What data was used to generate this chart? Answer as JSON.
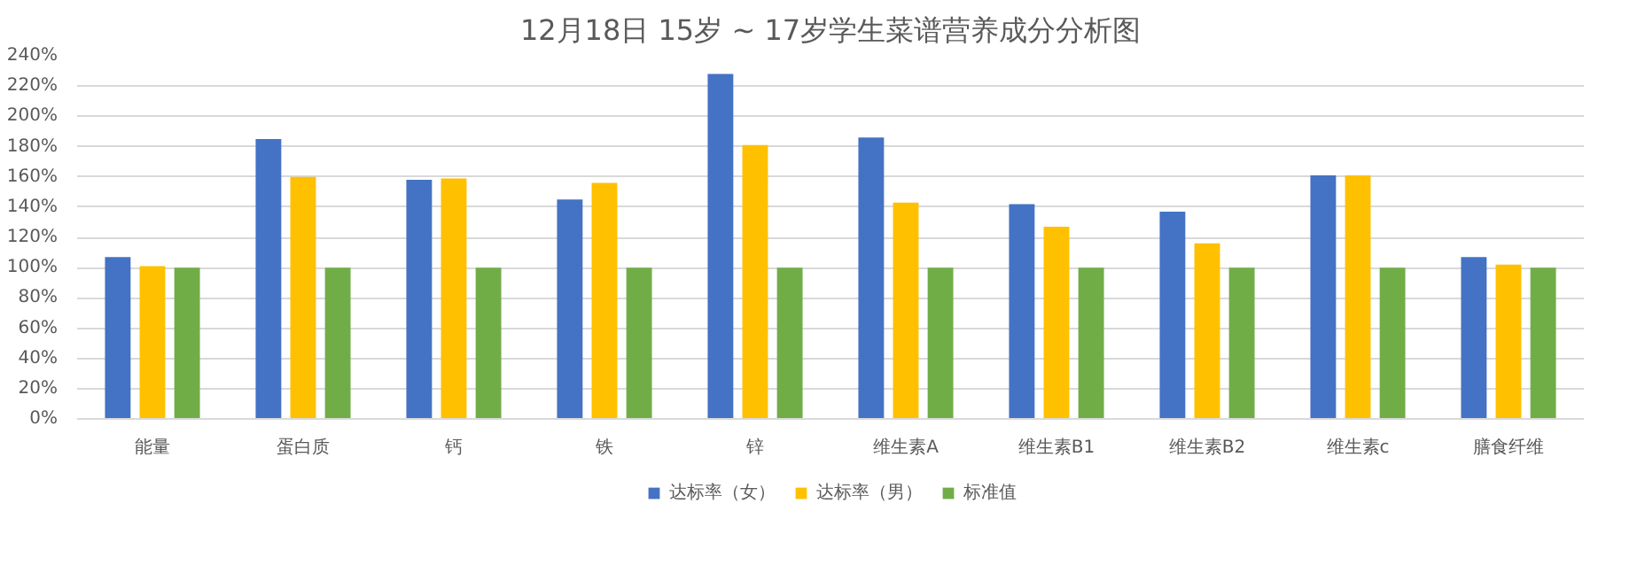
{
  "chart_data": {
    "type": "bar",
    "title": "12月18日 15岁 ~ 17岁学生菜谱营养成分分析图",
    "categories": [
      "能量",
      "蛋白质",
      "钙",
      "铁",
      "锌",
      "维生素A",
      "维生素B1",
      "维生素B2",
      "维生素c",
      "膳食纤维"
    ],
    "series": [
      {
        "name": "达标率（女）",
        "color": "#4472c4",
        "values": [
          107,
          185,
          158,
          145,
          228,
          186,
          142,
          137,
          161,
          107
        ]
      },
      {
        "name": "达标率（男）",
        "color": "#ffc000",
        "values": [
          101,
          160,
          159,
          156,
          181,
          143,
          127,
          116,
          161,
          102
        ]
      },
      {
        "name": "标准值",
        "color": "#70ad47",
        "values": [
          100,
          100,
          100,
          100,
          100,
          100,
          100,
          100,
          100,
          100
        ]
      }
    ],
    "ylim": [
      0,
      240
    ],
    "yticks": [
      {
        "value": 0,
        "label": "0%"
      },
      {
        "value": 20,
        "label": "20%"
      },
      {
        "value": 40,
        "label": "40%"
      },
      {
        "value": 60,
        "label": "60%"
      },
      {
        "value": 80,
        "label": "80%"
      },
      {
        "value": 100,
        "label": "100%"
      },
      {
        "value": 120,
        "label": "120%"
      },
      {
        "value": 140,
        "label": "140%"
      },
      {
        "value": 160,
        "label": "160%"
      },
      {
        "value": 180,
        "label": "180%"
      },
      {
        "value": 200,
        "label": "200%"
      },
      {
        "value": 220,
        "label": "220%"
      },
      {
        "value": 240,
        "label": "240%"
      }
    ],
    "grid": "y",
    "legend": "bottom"
  }
}
